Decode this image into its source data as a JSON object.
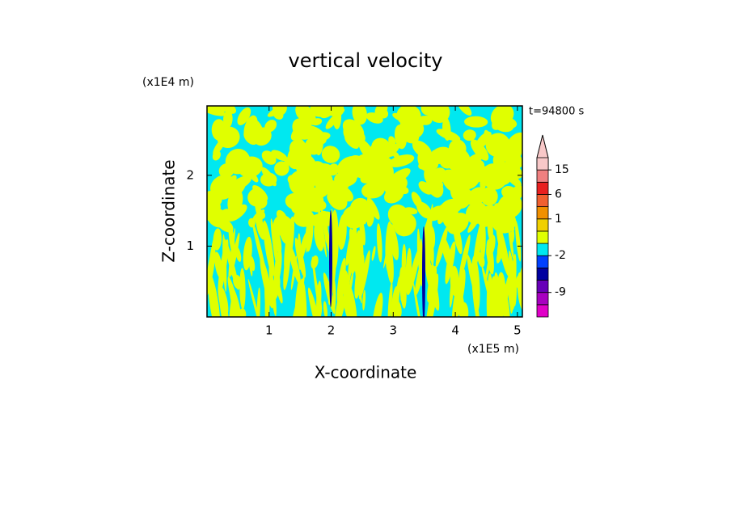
{
  "chart_data": {
    "type": "contour",
    "title": "vertical velocity",
    "x_label": "X-coordinate",
    "y_label": "Z-coordinate",
    "x_unit": "(x1E5 m)",
    "y_unit": "(x1E4 m)",
    "time_label": "t=94800 s",
    "xlim": [
      0,
      5.08
    ],
    "xticks": [
      1,
      2,
      3,
      4,
      5
    ],
    "ylim": [
      0,
      2.98
    ],
    "yticks": [
      1,
      2
    ],
    "colorbar": {
      "levels": [
        -15,
        -12,
        -9,
        -6,
        -3,
        -2,
        -1,
        0,
        1,
        3,
        6,
        9,
        15,
        20
      ],
      "colors": [
        "#e000c8",
        "#a800c0",
        "#6800b8",
        "#0000a0",
        "#0040ff",
        "#00e8f0",
        "#e0ff00",
        "#f0d000",
        "#f09000",
        "#f06030",
        "#e82020",
        "#f08080",
        "#f8c8c8"
      ],
      "ticks": [
        -9,
        -2,
        1,
        6,
        15
      ]
    }
  }
}
